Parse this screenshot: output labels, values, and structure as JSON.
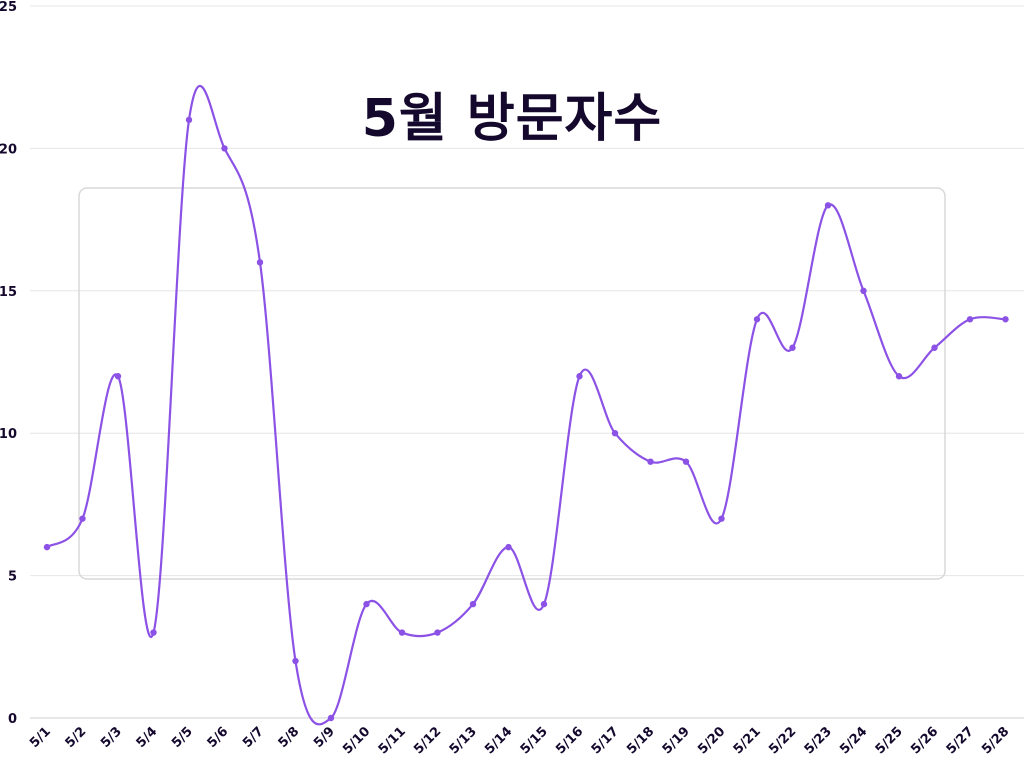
{
  "chart_data": {
    "type": "line",
    "title": "5월 방문자수",
    "xlabel": "",
    "ylabel": "",
    "categories": [
      "5/1",
      "5/2",
      "5/3",
      "5/4",
      "5/5",
      "5/6",
      "5/7",
      "5/8",
      "5/9",
      "5/10",
      "5/11",
      "5/12",
      "5/13",
      "5/14",
      "5/15",
      "5/16",
      "5/17",
      "5/18",
      "5/19",
      "5/20",
      "5/21",
      "5/22",
      "5/23",
      "5/24",
      "5/25",
      "5/26",
      "5/27",
      "5/28"
    ],
    "series": [
      {
        "values": [
          6,
          7,
          12,
          3,
          21,
          20,
          16,
          2,
          0,
          4,
          3,
          3,
          4,
          6,
          4,
          12,
          10,
          9,
          9,
          7,
          14,
          13,
          18,
          15,
          12,
          13,
          14,
          14
        ]
      }
    ],
    "ylim": [
      0,
      25
    ],
    "yticks": [
      0,
      5,
      10,
      15,
      20,
      25
    ],
    "grid": true,
    "line_color": "#8c52e6",
    "gridline_color": "#e6e6e6",
    "text_color": "#14092d"
  }
}
